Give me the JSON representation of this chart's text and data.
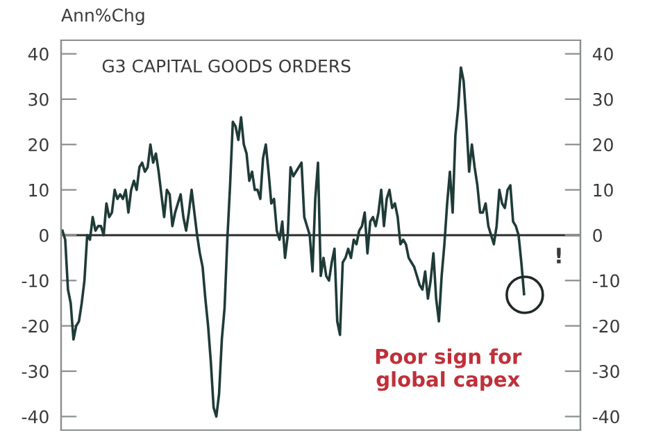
{
  "chart_data": {
    "type": "line",
    "title": "G3 CAPITAL GOODS ORDERS",
    "ylabel": "Ann%Chg",
    "categories": [
      null,
      null,
      null,
      null,
      null,
      null,
      null,
      null,
      null,
      null,
      null,
      null,
      null,
      null,
      null,
      null,
      null,
      null,
      null,
      null,
      null,
      null,
      null,
      null,
      null,
      null,
      null,
      null,
      null,
      null,
      null,
      null,
      null,
      null,
      null,
      null,
      null,
      null,
      null,
      null,
      null,
      null,
      null,
      null,
      null,
      null,
      null,
      null,
      null,
      null,
      null,
      null,
      null,
      null,
      null,
      null,
      null,
      null,
      null,
      null,
      null,
      null,
      null,
      null,
      null,
      null,
      null,
      null,
      null,
      null,
      null,
      null,
      null,
      null,
      null,
      null,
      null,
      null,
      null,
      null,
      null,
      null,
      null,
      null,
      null,
      null,
      null,
      null,
      null,
      null,
      null,
      null,
      null,
      null,
      null,
      null,
      null,
      null,
      null,
      null,
      null,
      null,
      null,
      null,
      null,
      null,
      null,
      null,
      null,
      null,
      null,
      null,
      null,
      null,
      null,
      null,
      null,
      null,
      null,
      null,
      null,
      null,
      null,
      null,
      null,
      null,
      null,
      null,
      null,
      null,
      null,
      null,
      null,
      null,
      null,
      null,
      null,
      null,
      null,
      null,
      null,
      null,
      null,
      null,
      null,
      null,
      null,
      null,
      null,
      null,
      null,
      null,
      null,
      null,
      null,
      null,
      null,
      null,
      null,
      null,
      null,
      null,
      null,
      null,
      null,
      null,
      null,
      null,
      null,
      null,
      null,
      null,
      null,
      null,
      null,
      null,
      null,
      null,
      null,
      null,
      null,
      null,
      null,
      null,
      null,
      null,
      null,
      null,
      null
    ],
    "series": [
      {
        "color": "#1f3b37",
        "values": [
          1,
          -1,
          -12,
          -15,
          -23,
          -20,
          -19,
          -15,
          -10,
          0,
          -1,
          4,
          1,
          2,
          2,
          0,
          7,
          4,
          5,
          10,
          8,
          9,
          8,
          10,
          5,
          10,
          12,
          10,
          15,
          16,
          14,
          15,
          20,
          16,
          18,
          14,
          9,
          4,
          10,
          9,
          2,
          5,
          7,
          9,
          4,
          1,
          5,
          10,
          5,
          0,
          -4,
          -7,
          -14,
          -20,
          -28,
          -38,
          -40,
          -35,
          -23,
          -16,
          -1,
          11,
          25,
          24,
          21,
          26,
          20,
          18,
          12,
          14,
          10,
          10,
          8,
          17,
          20,
          14,
          7,
          8,
          1,
          -1,
          3,
          -5,
          0,
          15,
          13,
          14,
          15,
          16,
          4,
          2,
          0,
          -8,
          8,
          16,
          -9,
          -5,
          -9,
          -10,
          -6,
          -3,
          -19,
          -22,
          -6,
          -5,
          -3,
          -5,
          -1,
          -2,
          1,
          2,
          5,
          -4,
          3,
          4,
          2,
          5,
          10,
          2,
          8,
          10,
          6,
          7,
          4,
          -2,
          -1,
          -2,
          -5,
          -6,
          -7,
          -9,
          -11,
          -12,
          -8,
          -14,
          -10,
          -4,
          -14,
          -19,
          -9,
          -2,
          7,
          14,
          5,
          22,
          28,
          37,
          34,
          25,
          14,
          20,
          15,
          11,
          5,
          5,
          7,
          2,
          0,
          -2,
          2,
          10,
          7,
          6,
          10,
          11,
          3,
          2,
          0,
          -6,
          -13,
          null,
          null,
          null,
          null,
          null,
          null,
          null,
          null,
          null,
          null,
          null,
          null,
          null,
          null,
          null,
          null,
          null,
          null,
          null,
          null
        ]
      }
    ],
    "ylim": [
      -43,
      43
    ],
    "yticks": [
      -40,
      -30,
      -20,
      -10,
      0,
      10,
      20,
      30,
      40
    ],
    "y2lim": [
      -43,
      43
    ],
    "y2ticks": [
      -40,
      -30,
      -20,
      -10,
      0,
      10,
      20,
      30,
      40
    ],
    "tick_labels": "y",
    "grid": false,
    "legend": false,
    "marker": "none",
    "line_style": "solid",
    "ref_lines": [
      {
        "axis": "y",
        "value": 0,
        "color": "#2b2b2b"
      }
    ],
    "annotations": [
      "Poor sign for global capex",
      "!"
    ]
  }
}
